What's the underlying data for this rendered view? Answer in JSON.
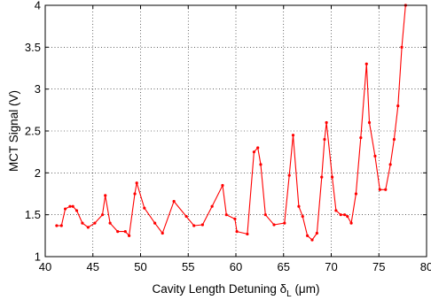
{
  "chart_data": {
    "type": "line",
    "title": "",
    "xlabel_prefix": "Cavity Length Detuning δ",
    "xlabel_sub": "L",
    "xlabel_suffix": " (μm)",
    "ylabel": "MCT Signal (V)",
    "xlim": [
      40,
      80
    ],
    "ylim": [
      1,
      4
    ],
    "xticks": [
      40,
      45,
      50,
      55,
      60,
      65,
      70,
      75,
      80
    ],
    "yticks": [
      1,
      1.5,
      2,
      2.5,
      3,
      3.5,
      4
    ],
    "xtick_labels": [
      "40",
      "45",
      "50",
      "55",
      "60",
      "65",
      "70",
      "75",
      "80"
    ],
    "ytick_labels": [
      "1",
      "1.5",
      "2",
      "2.5",
      "3",
      "3.5",
      "4"
    ],
    "grid": true,
    "series": [
      {
        "color": "#ff0000",
        "marker": "dot",
        "x": [
          41.2,
          41.7,
          42.1,
          42.6,
          42.9,
          43.3,
          43.9,
          44.5,
          45.2,
          46.0,
          46.3,
          46.8,
          47.6,
          48.4,
          48.8,
          49.4,
          49.6,
          50.4,
          51.5,
          52.3,
          53.5,
          54.8,
          55.6,
          56.5,
          57.5,
          58.6,
          59.0,
          59.9,
          60.1,
          61.2,
          61.9,
          62.3,
          62.6,
          63.1,
          64.0,
          65.1,
          65.6,
          66.0,
          66.6,
          67.0,
          67.5,
          68.0,
          68.5,
          69.0,
          69.3,
          69.5,
          70.1,
          70.5,
          71.0,
          71.4,
          71.7,
          72.1,
          72.6,
          73.1,
          73.7,
          74.0,
          74.6,
          75.1,
          75.7,
          76.2,
          76.6,
          77.0,
          77.4,
          77.8
        ],
        "y": [
          1.37,
          1.37,
          1.57,
          1.6,
          1.6,
          1.55,
          1.4,
          1.35,
          1.4,
          1.5,
          1.73,
          1.4,
          1.3,
          1.3,
          1.25,
          1.75,
          1.88,
          1.58,
          1.4,
          1.28,
          1.66,
          1.48,
          1.37,
          1.38,
          1.6,
          1.85,
          1.5,
          1.45,
          1.3,
          1.27,
          2.25,
          2.3,
          2.1,
          1.5,
          1.38,
          1.4,
          1.97,
          2.45,
          1.6,
          1.48,
          1.25,
          1.2,
          1.28,
          1.95,
          2.4,
          2.6,
          1.95,
          1.55,
          1.5,
          1.5,
          1.48,
          1.4,
          1.75,
          2.42,
          3.3,
          2.6,
          2.2,
          1.8,
          1.8,
          2.1,
          2.4,
          2.8,
          3.5,
          4.0
        ]
      }
    ]
  }
}
